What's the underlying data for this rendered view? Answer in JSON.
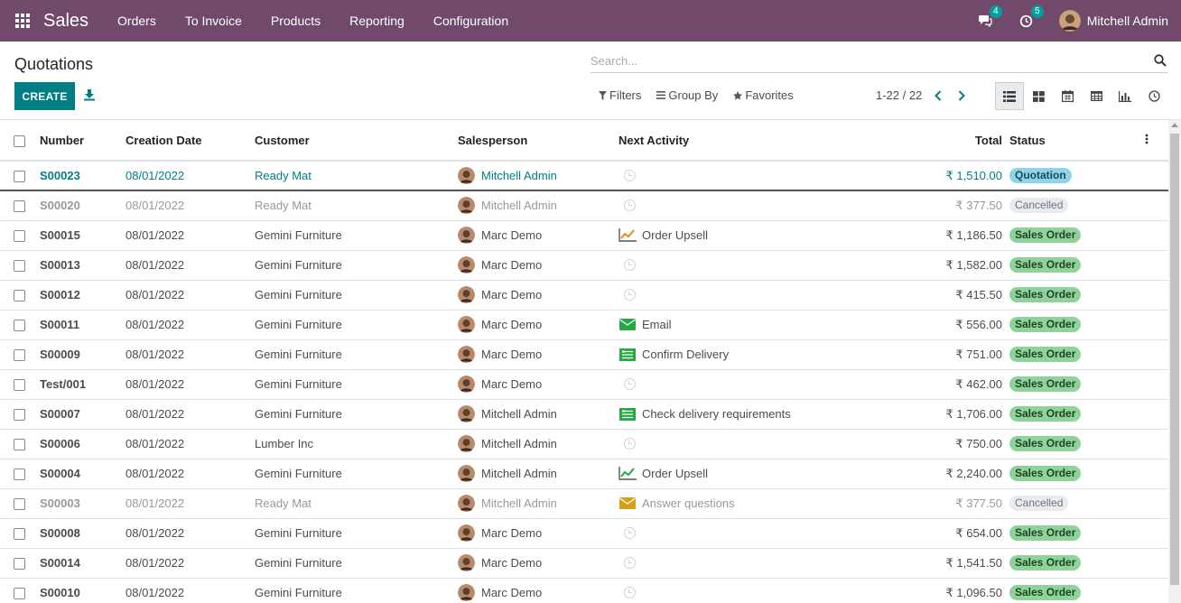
{
  "navbar": {
    "brand": "Sales",
    "menu": [
      "Orders",
      "To Invoice",
      "Products",
      "Reporting",
      "Configuration"
    ],
    "messages_count": "4",
    "activities_count": "5",
    "user_name": "Mitchell Admin"
  },
  "control_panel": {
    "title": "Quotations",
    "create_label": "CREATE",
    "search_placeholder": "Search...",
    "filters_label": "Filters",
    "groupby_label": "Group By",
    "favorites_label": "Favorites",
    "pager_value": "1-22 / 22"
  },
  "table": {
    "headers": {
      "number": "Number",
      "creation_date": "Creation Date",
      "customer": "Customer",
      "salesperson": "Salesperson",
      "next_activity": "Next Activity",
      "total": "Total",
      "status": "Status"
    },
    "rows": [
      {
        "number": "S00023",
        "date": "08/01/2022",
        "customer": "Ready Mat",
        "salesperson": "Mitchell Admin",
        "activity": "",
        "activity_icon": "clock-icon",
        "total": "₹ 1,510.00",
        "status": "Quotation",
        "style": "link"
      },
      {
        "number": "S00020",
        "date": "08/01/2022",
        "customer": "Ready Mat",
        "salesperson": "Mitchell Admin",
        "activity": "",
        "activity_icon": "clock-icon",
        "total": "₹ 377.50",
        "status": "Cancelled",
        "style": "muted"
      },
      {
        "number": "S00015",
        "date": "08/01/2022",
        "customer": "Gemini Furniture",
        "salesperson": "Marc Demo",
        "activity": "Order Upsell",
        "activity_icon": "chart-icon",
        "total": "₹ 1,186.50",
        "status": "Sales Order",
        "style": "normal"
      },
      {
        "number": "S00013",
        "date": "08/01/2022",
        "customer": "Gemini Furniture",
        "salesperson": "Marc Demo",
        "activity": "",
        "activity_icon": "clock-icon",
        "total": "₹ 1,582.00",
        "status": "Sales Order",
        "style": "normal"
      },
      {
        "number": "S00012",
        "date": "08/01/2022",
        "customer": "Gemini Furniture",
        "salesperson": "Marc Demo",
        "activity": "",
        "activity_icon": "clock-icon",
        "total": "₹ 415.50",
        "status": "Sales Order",
        "style": "normal"
      },
      {
        "number": "S00011",
        "date": "08/01/2022",
        "customer": "Gemini Furniture",
        "salesperson": "Marc Demo",
        "activity": "Email",
        "activity_icon": "envelope-icon",
        "total": "₹ 556.00",
        "status": "Sales Order",
        "style": "normal"
      },
      {
        "number": "S00009",
        "date": "08/01/2022",
        "customer": "Gemini Furniture",
        "salesperson": "Marc Demo",
        "activity": "Confirm Delivery",
        "activity_icon": "tasks-icon",
        "total": "₹ 751.00",
        "status": "Sales Order",
        "style": "normal"
      },
      {
        "number": "Test/001",
        "date": "08/01/2022",
        "customer": "Gemini Furniture",
        "salesperson": "Marc Demo",
        "activity": "",
        "activity_icon": "clock-icon",
        "total": "₹ 462.00",
        "status": "Sales Order",
        "style": "normal"
      },
      {
        "number": "S00007",
        "date": "08/01/2022",
        "customer": "Gemini Furniture",
        "salesperson": "Mitchell Admin",
        "activity": "Check delivery requirements",
        "activity_icon": "tasks-icon",
        "total": "₹ 1,706.00",
        "status": "Sales Order",
        "style": "normal"
      },
      {
        "number": "S00006",
        "date": "08/01/2022",
        "customer": "Lumber Inc",
        "salesperson": "Mitchell Admin",
        "activity": "",
        "activity_icon": "clock-icon",
        "total": "₹ 750.00",
        "status": "Sales Order",
        "style": "normal"
      },
      {
        "number": "S00004",
        "date": "08/01/2022",
        "customer": "Gemini Furniture",
        "salesperson": "Mitchell Admin",
        "activity": "Order Upsell",
        "activity_icon": "chart-icon-green",
        "total": "₹ 2,240.00",
        "status": "Sales Order",
        "style": "normal"
      },
      {
        "number": "S00003",
        "date": "08/01/2022",
        "customer": "Ready Mat",
        "salesperson": "Mitchell Admin",
        "activity": "Answer questions",
        "activity_icon": "envelope-icon-orange",
        "total": "₹ 377.50",
        "status": "Cancelled",
        "style": "muted"
      },
      {
        "number": "S00008",
        "date": "08/01/2022",
        "customer": "Gemini Furniture",
        "salesperson": "Marc Demo",
        "activity": "",
        "activity_icon": "clock-icon",
        "total": "₹ 654.00",
        "status": "Sales Order",
        "style": "normal"
      },
      {
        "number": "S00014",
        "date": "08/01/2022",
        "customer": "Gemini Furniture",
        "salesperson": "Marc Demo",
        "activity": "",
        "activity_icon": "clock-icon",
        "total": "₹ 1,541.50",
        "status": "Sales Order",
        "style": "normal"
      },
      {
        "number": "S00010",
        "date": "08/01/2022",
        "customer": "Gemini Furniture",
        "salesperson": "Marc Demo",
        "activity": "",
        "activity_icon": "clock-icon",
        "total": "₹ 1,096.50",
        "status": "Sales Order",
        "style": "normal"
      }
    ]
  },
  "colors": {
    "navbar": "#71496b",
    "primary": "#017e84",
    "badge": "#00a09d",
    "quotation": "#8ed3e7",
    "sales_order": "#8fd39a",
    "cancelled": "#e9ecef"
  }
}
